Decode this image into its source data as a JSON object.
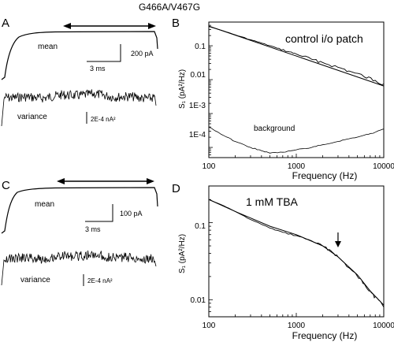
{
  "figure_title": "G466A/V467G",
  "chart_data": [
    {
      "id": "A",
      "type": "line",
      "panel_label": "A",
      "description": "Current traces: mean and variance",
      "labels": {
        "mean": "mean",
        "variance": "variance",
        "time_scale": "3 ms",
        "current_scale": "200 pA",
        "variance_scale": "2E-4 nA²"
      }
    },
    {
      "id": "B",
      "type": "line",
      "panel_label": "B",
      "title": "control i/o patch",
      "xlabel": "Frequency (Hz)",
      "ylabel": "S₁ (pA²/Hz)",
      "xscale": "log",
      "yscale": "log",
      "xlim": [
        100,
        10000
      ],
      "ylim": [
        5e-05,
        0.5
      ],
      "x_ticks": [
        "100",
        "1000",
        "10000"
      ],
      "y_ticks": [
        "0.1",
        "0.01",
        "1E-3",
        "1E-4"
      ],
      "annotations": [
        "background"
      ],
      "series": [
        {
          "x": [
            100,
            150,
            200,
            300,
            400,
            600,
            800,
            1000,
            1500,
            2000,
            3000,
            4000,
            6000,
            8000,
            10000
          ],
          "y": [
            0.37,
            0.27,
            0.21,
            0.15,
            0.12,
            0.085,
            0.068,
            0.057,
            0.04,
            0.032,
            0.023,
            0.018,
            0.012,
            0.0095,
            0.0075
          ]
        },
        {
          "x": [
            100,
            10000
          ],
          "y": [
            0.38,
            0.0065
          ]
        },
        {
          "x": [
            100,
            150,
            200,
            300,
            400,
            500,
            700,
            1000,
            1500,
            2000,
            3000,
            4000,
            6000,
            8000,
            10000
          ],
          "y": [
            0.0004,
            0.00022,
            0.00015,
            0.0001,
            8e-05,
            6.8e-05,
            7.2e-05,
            8.5e-05,
            0.0001,
            0.00012,
            0.00015,
            0.00018,
            0.00023,
            0.00028,
            0.00035
          ]
        }
      ]
    },
    {
      "id": "C",
      "type": "line",
      "panel_label": "C",
      "description": "Current traces: mean and variance",
      "labels": {
        "mean": "mean",
        "variance": "variance",
        "time_scale": "3 ms",
        "current_scale": "100 pA",
        "variance_scale": "2E-4 nA²"
      }
    },
    {
      "id": "D",
      "type": "line",
      "panel_label": "D",
      "title": "1 mM TBA",
      "xlabel": "Frequency (Hz)",
      "ylabel": "S₁ (pA²/Hz)",
      "xscale": "log",
      "yscale": "log",
      "xlim": [
        100,
        10000
      ],
      "ylim": [
        0.006,
        0.3
      ],
      "x_ticks": [
        "100",
        "1000",
        "10000"
      ],
      "y_ticks": [
        "0.1",
        "0.01"
      ],
      "series": [
        {
          "x": [
            100,
            150,
            200,
            300,
            500,
            700,
            1000,
            1500,
            2000,
            2500,
            3000,
            4000,
            5000,
            6000,
            7000,
            8000,
            10000
          ],
          "y": [
            0.2,
            0.165,
            0.14,
            0.11,
            0.085,
            0.075,
            0.068,
            0.058,
            0.05,
            0.043,
            0.036,
            0.026,
            0.02,
            0.016,
            0.013,
            0.011,
            0.008
          ]
        },
        {
          "x": [
            100,
            200,
            500,
            1000,
            2000,
            3000,
            5000,
            7000,
            10000
          ],
          "y": [
            0.2,
            0.14,
            0.09,
            0.07,
            0.05,
            0.036,
            0.021,
            0.013,
            0.0085
          ]
        }
      ],
      "arrow_at_hz": 3000
    }
  ]
}
